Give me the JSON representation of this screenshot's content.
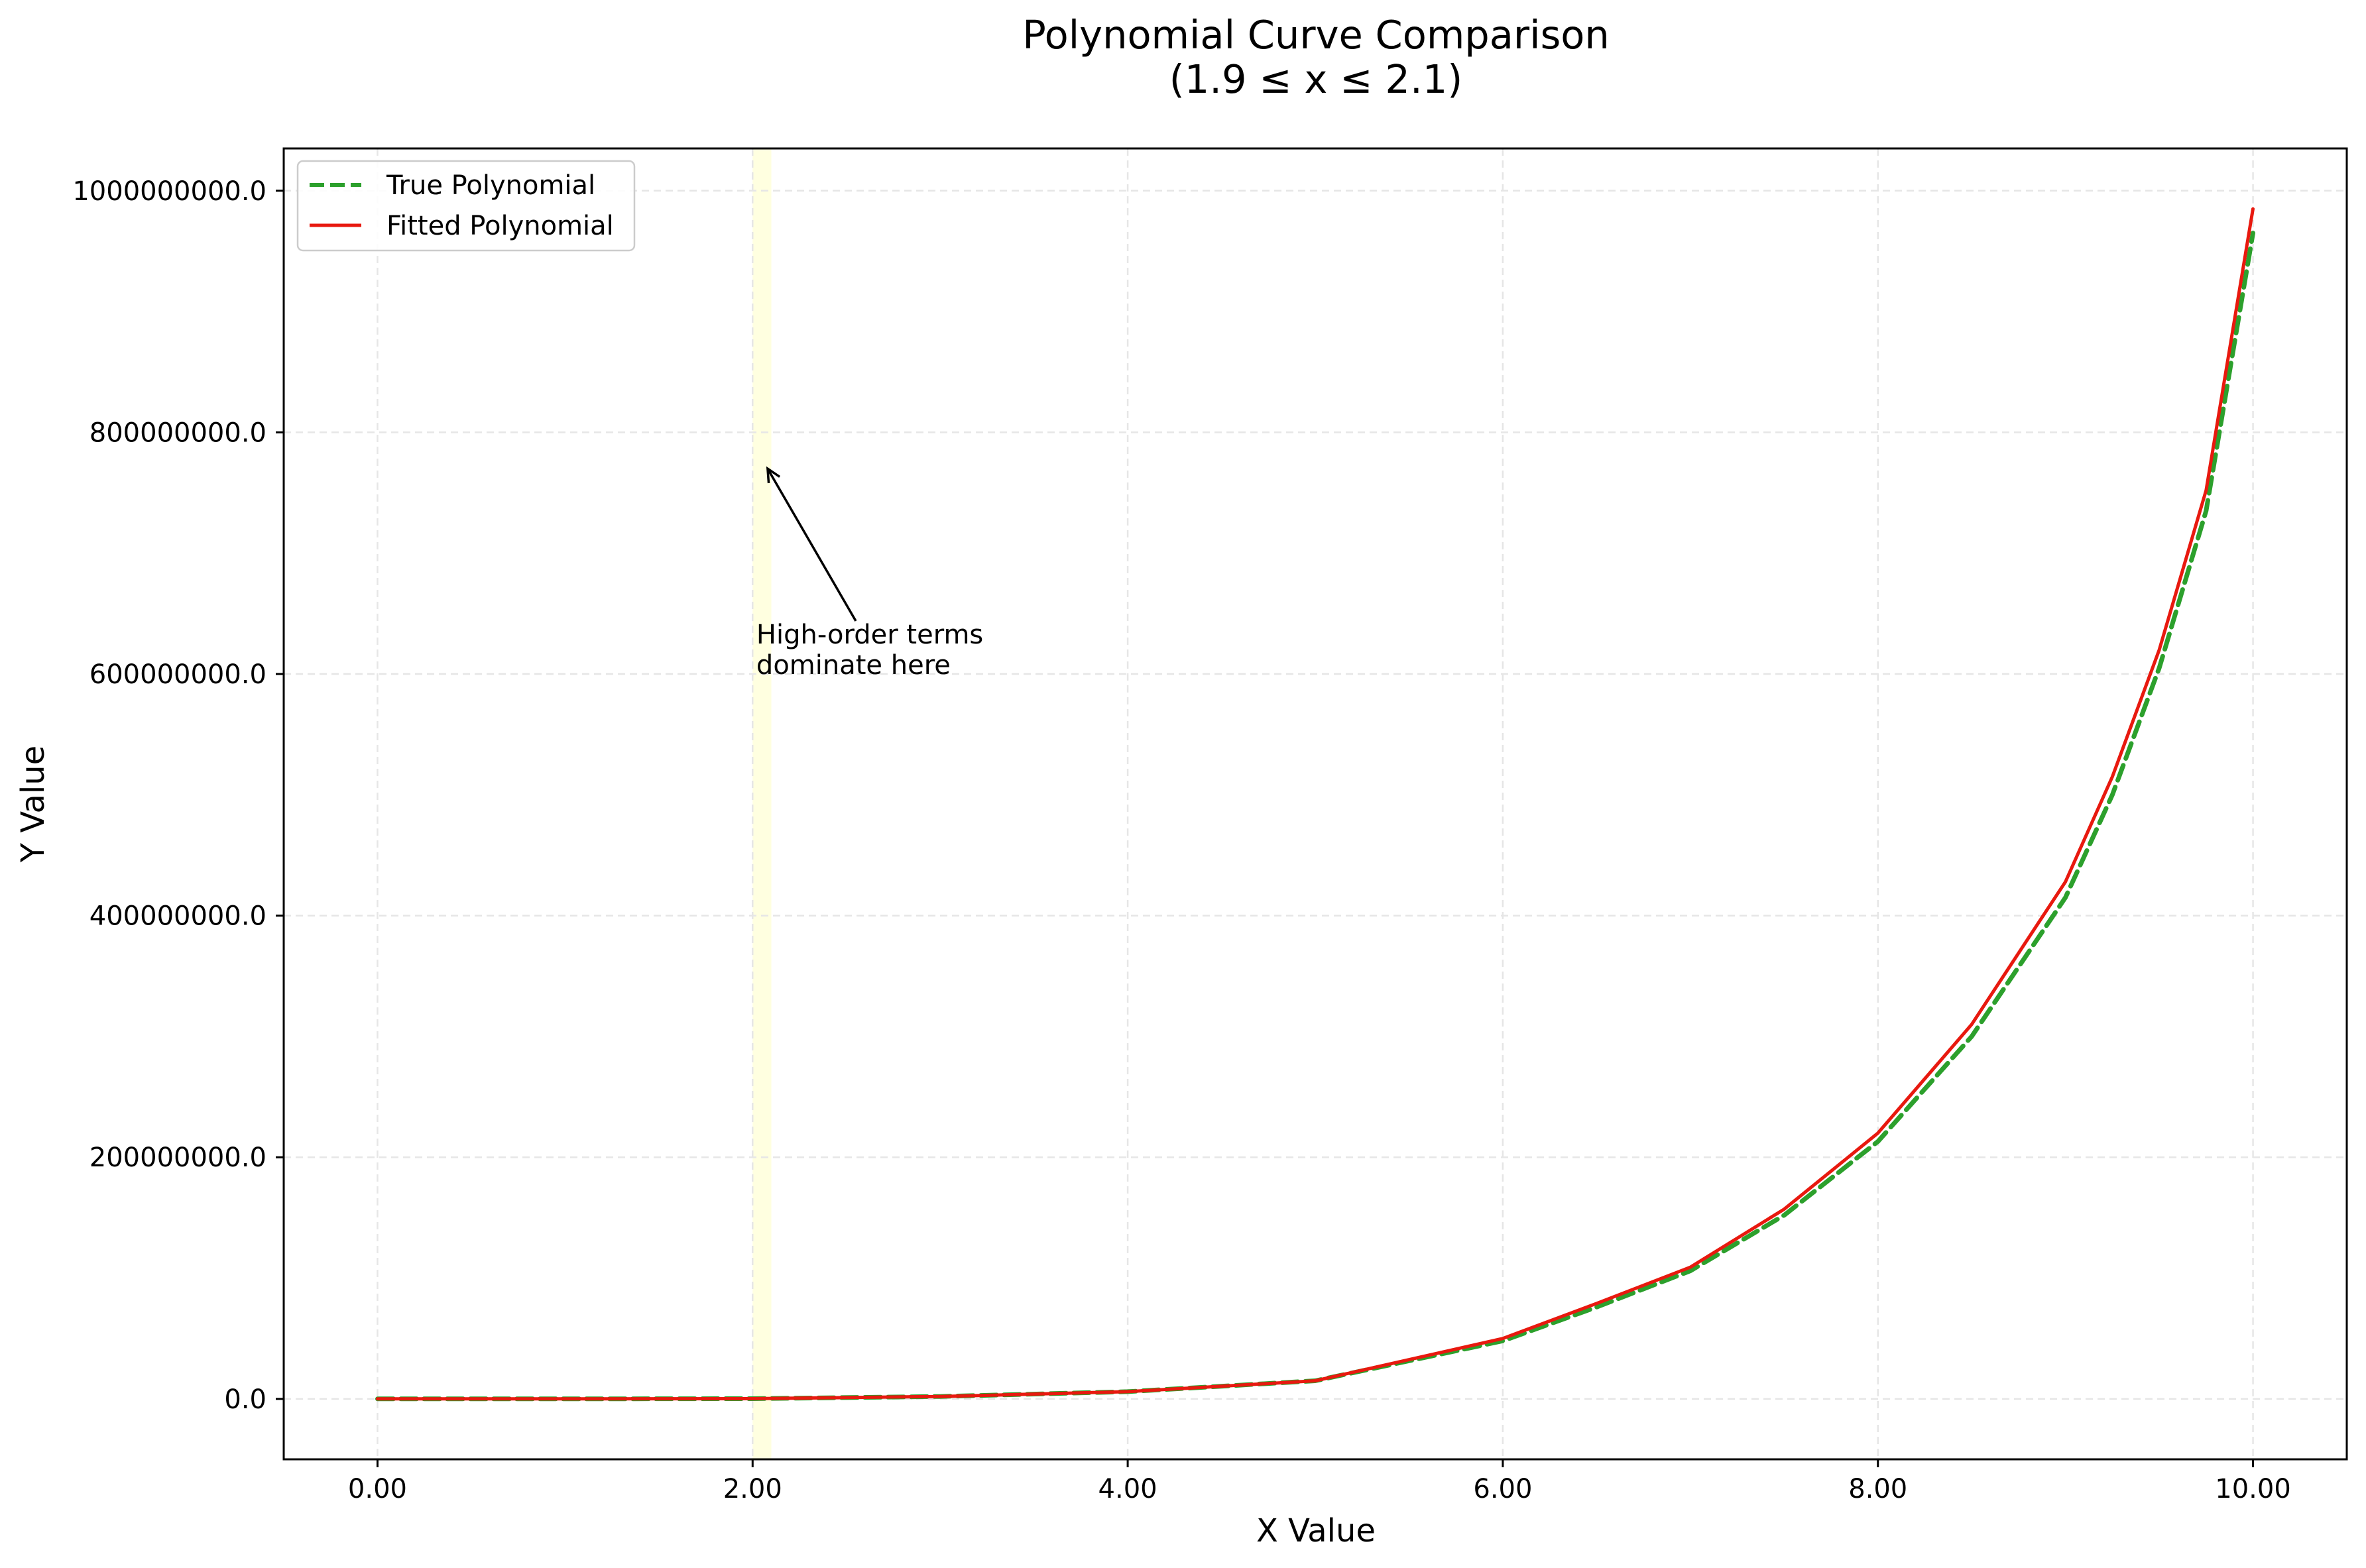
{
  "chart_data": {
    "type": "line",
    "title": [
      "Polynomial Curve Comparison",
      "(1.9 ≤ x ≤ 2.1)"
    ],
    "xlabel": "X Value",
    "ylabel": "Y Value",
    "xlim": [
      -0.5,
      10.5
    ],
    "ylim": [
      -50000000,
      1035000000
    ],
    "xticks": [
      0,
      2,
      4,
      6,
      8,
      10
    ],
    "xtick_labels": [
      "0.00",
      "2.00",
      "4.00",
      "6.00",
      "8.00",
      "10.00"
    ],
    "yticks": [
      0,
      200000000,
      400000000,
      600000000,
      800000000,
      1000000000
    ],
    "ytick_labels": [
      "0.0",
      "200000000.0",
      "400000000.0",
      "600000000.0",
      "800000000.0",
      "1000000000.0"
    ],
    "grid": true,
    "legend_position": "upper-left",
    "highlight_region": {
      "x": [
        2.0,
        2.1
      ],
      "color": "#ffffe0"
    },
    "annotation": {
      "text": [
        "High-order terms",
        "dominate here"
      ],
      "text_at": [
        2.02,
        600000000
      ],
      "arrow_to": [
        2.08,
        770000000
      ]
    },
    "series": [
      {
        "name": "True Polynomial",
        "color": "#2ca02c",
        "style": "dashed",
        "x": [
          0,
          1,
          2,
          3,
          4,
          5,
          6,
          6.5,
          7,
          7.5,
          8,
          8.5,
          9,
          9.25,
          9.5,
          9.75,
          10
        ],
        "y": [
          0,
          0,
          200000,
          2000000,
          6000000,
          15000000,
          48000000,
          76000000,
          106000000,
          152000000,
          213000000,
          300000000,
          415000000,
          500000000,
          605000000,
          735000000,
          965000000
        ]
      },
      {
        "name": "Fitted Polynomial",
        "color": "#e8190f",
        "style": "solid",
        "x": [
          0,
          1,
          2,
          3,
          4,
          5,
          6,
          6.5,
          7,
          7.5,
          8,
          8.5,
          9,
          9.25,
          9.5,
          9.75,
          10
        ],
        "y": [
          0,
          0,
          200000,
          2000000,
          6000000,
          15000000,
          50000000,
          79000000,
          109000000,
          157000000,
          220000000,
          310000000,
          428000000,
          515000000,
          620000000,
          752000000,
          985000000
        ]
      }
    ]
  }
}
